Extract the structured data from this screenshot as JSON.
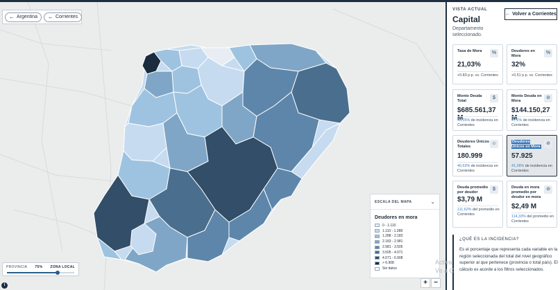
{
  "map": {
    "nav": {
      "argentina_label": "Argentina",
      "corrientes_label": "Corrientes"
    },
    "legend": {
      "header": "ESCALA DEL MAPA",
      "title": "Deudores en mora",
      "items": [
        {
          "label": "0 - 1.110",
          "color": "#e7edf3"
        },
        {
          "label": "1.110 - 1.288",
          "color": "#c6dbef"
        },
        {
          "label": "1.288 - 2.183",
          "color": "#9ec3e0"
        },
        {
          "label": "2.183 - 2.981",
          "color": "#7fa6c6"
        },
        {
          "label": "2.981 - 3.505",
          "color": "#5d86aa"
        },
        {
          "label": "3.505 - 4.071",
          "color": "#4a6e8e"
        },
        {
          "label": "4.071 - 6.908",
          "color": "#324e68"
        },
        {
          "label": "> 6.908",
          "color": "#1a2c3e"
        },
        {
          "label": "Sin datos",
          "color": "#ffffff"
        }
      ]
    },
    "zone": {
      "left_label": "PROVINCIA",
      "value_label": "75%",
      "right_label": "ZONA LOCAL",
      "level": 0.75
    },
    "info_icon": "i",
    "zoom_in": "+",
    "zoom_out": "−",
    "watermark_line1": "Activa",
    "watermark_line2": "Ve a C"
  },
  "panel": {
    "vista_label": "VISTA ACTUAL",
    "title": "Capital",
    "subtitle": "Departamento seleccionado.",
    "back_button": "Volver a Corrientes",
    "cards": {
      "tasa": {
        "title": "Tasa de Mora",
        "value": "21,03%",
        "note": "+0.83 p.p. vs. Corrientes",
        "icon": "percent-icon"
      },
      "deudores_mora": {
        "title": "Deudores en Mora",
        "value": "32%",
        "note": "+0.51 p.p. vs. Corrientes",
        "icon": "percent-icon"
      },
      "monto_total": {
        "title": "Monto Deuda Total",
        "value": "$685.561,37 M",
        "note_hl": "45,35%",
        "note_rest": " de incidencia en Corrientes",
        "icon": "money-icon"
      },
      "monto_mora": {
        "title": "Monto Deuda en Mora",
        "value": "$144.150,27 M",
        "note_hl": "47,2%",
        "note_rest": " de incidencia en Corrientes",
        "icon": "money-off-icon"
      },
      "unicos_totales": {
        "title": "Deudores Únicos Totales",
        "value": "180.999",
        "note_hl": "40,63%",
        "note_rest": " de incidencia en Corrientes",
        "icon": "user-icon"
      },
      "unicos_mora": {
        "title": "Deudores Únicos en Mora",
        "value": "57.925",
        "note_hl": "41,28%",
        "note_rest": " de incidencia en Corrientes",
        "icon": "user-off-icon"
      },
      "promedio": {
        "title": "Deuda promedio por deudor",
        "value": "$3,79 M",
        "note_hl": "111,62%",
        "note_rest": " del promedio en Corrientes",
        "icon": "money-icon"
      },
      "promedio_mora": {
        "title": "Deuda en mora promedio por deudor en mora",
        "value": "$2,49 M",
        "note_hl": "114,33%",
        "note_rest": " del promedio en Corrientes",
        "icon": "money-off-icon"
      }
    },
    "question": {
      "title": "¿QUÉ ES LA INCIDENCIA?",
      "text": "Es el porcentaje que representa cada variable en la región seleccionada del total del nivel geográfico superior al que pertenece (provincia o total país). El cálculo es acorde a los filtros seleccionados."
    }
  }
}
